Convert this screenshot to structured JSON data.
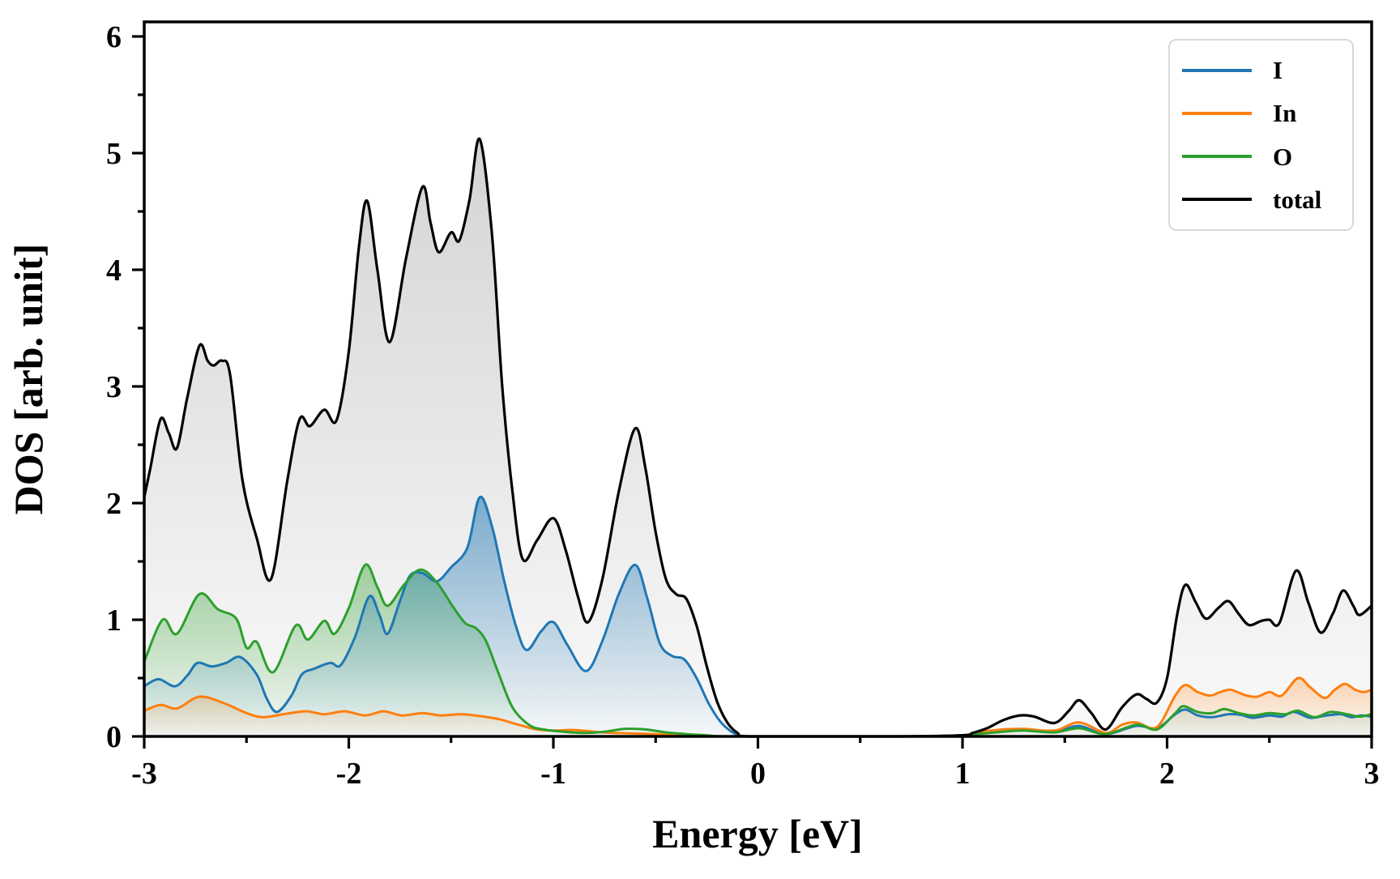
{
  "figure": {
    "background": "#ffffff"
  },
  "chart_data": {
    "type": "area",
    "title": "",
    "xlabel": "Energy [eV]",
    "ylabel": "DOS [arb. unit]",
    "xlim": [
      -3,
      3
    ],
    "ylim": [
      0,
      6.13
    ],
    "grid": false,
    "xticks": {
      "major": [
        -3,
        -2,
        -1,
        0,
        1,
        2,
        3
      ],
      "labels": [
        "-3",
        "-2",
        "-1",
        "0",
        "1",
        "2",
        "3"
      ],
      "minor_step": 0.5
    },
    "yticks": {
      "major": [
        0,
        1,
        2,
        3,
        4,
        5,
        6
      ],
      "labels": [
        "0",
        "1",
        "2",
        "3",
        "4",
        "5",
        "6"
      ],
      "minor_step": 0.5
    },
    "legend": {
      "position": "upper right",
      "entries": [
        "I",
        "In",
        "O",
        "total"
      ]
    },
    "series": [
      {
        "name": "I",
        "color": "#1f77b4",
        "fill_top_alpha": 0.55,
        "points": [
          [
            -3,
            0.43
          ],
          [
            -2.93,
            0.49
          ],
          [
            -2.85,
            0.43
          ],
          [
            -2.79,
            0.52
          ],
          [
            -2.74,
            0.63
          ],
          [
            -2.67,
            0.6
          ],
          [
            -2.6,
            0.63
          ],
          [
            -2.53,
            0.68
          ],
          [
            -2.45,
            0.53
          ],
          [
            -2.4,
            0.32
          ],
          [
            -2.35,
            0.21
          ],
          [
            -2.28,
            0.35
          ],
          [
            -2.23,
            0.53
          ],
          [
            -2.17,
            0.58
          ],
          [
            -2.09,
            0.63
          ],
          [
            -2.04,
            0.61
          ],
          [
            -1.97,
            0.85
          ],
          [
            -1.9,
            1.2
          ],
          [
            -1.85,
            1.04
          ],
          [
            -1.81,
            0.88
          ],
          [
            -1.75,
            1.16
          ],
          [
            -1.7,
            1.38
          ],
          [
            -1.64,
            1.4
          ],
          [
            -1.57,
            1.33
          ],
          [
            -1.5,
            1.45
          ],
          [
            -1.42,
            1.62
          ],
          [
            -1.36,
            2.05
          ],
          [
            -1.3,
            1.8
          ],
          [
            -1.24,
            1.33
          ],
          [
            -1.18,
            0.93
          ],
          [
            -1.13,
            0.74
          ],
          [
            -1.06,
            0.9
          ],
          [
            -1,
            0.98
          ],
          [
            -0.93,
            0.78
          ],
          [
            -0.84,
            0.56
          ],
          [
            -0.76,
            0.82
          ],
          [
            -0.68,
            1.22
          ],
          [
            -0.6,
            1.47
          ],
          [
            -0.54,
            1.18
          ],
          [
            -0.48,
            0.8
          ],
          [
            -0.42,
            0.69
          ],
          [
            -0.36,
            0.66
          ],
          [
            -0.3,
            0.5
          ],
          [
            -0.24,
            0.28
          ],
          [
            -0.18,
            0.12
          ],
          [
            -0.11,
            0.02
          ],
          [
            -0.05,
            0
          ],
          [
            0.3,
            0
          ],
          [
            0.7,
            0
          ],
          [
            1,
            0.01
          ],
          [
            1.1,
            0.03
          ],
          [
            1.2,
            0.05
          ],
          [
            1.3,
            0.055
          ],
          [
            1.45,
            0.04
          ],
          [
            1.57,
            0.09
          ],
          [
            1.7,
            0.02
          ],
          [
            1.85,
            0.09
          ],
          [
            1.95,
            0.07
          ],
          [
            2.04,
            0.19
          ],
          [
            2.09,
            0.23
          ],
          [
            2.15,
            0.18
          ],
          [
            2.22,
            0.165
          ],
          [
            2.3,
            0.19
          ],
          [
            2.36,
            0.185
          ],
          [
            2.42,
            0.16
          ],
          [
            2.5,
            0.18
          ],
          [
            2.56,
            0.17
          ],
          [
            2.62,
            0.21
          ],
          [
            2.7,
            0.16
          ],
          [
            2.78,
            0.18
          ],
          [
            2.85,
            0.19
          ],
          [
            2.9,
            0.165
          ],
          [
            2.95,
            0.18
          ],
          [
            3,
            0.17
          ]
        ]
      },
      {
        "name": "In",
        "color": "#ff7f0e",
        "fill_top_alpha": 0.3,
        "points": [
          [
            -3,
            0.22
          ],
          [
            -2.92,
            0.27
          ],
          [
            -2.84,
            0.24
          ],
          [
            -2.73,
            0.34
          ],
          [
            -2.61,
            0.285
          ],
          [
            -2.5,
            0.2
          ],
          [
            -2.42,
            0.165
          ],
          [
            -2.32,
            0.19
          ],
          [
            -2.21,
            0.215
          ],
          [
            -2.12,
            0.19
          ],
          [
            -2.02,
            0.215
          ],
          [
            -1.92,
            0.18
          ],
          [
            -1.83,
            0.215
          ],
          [
            -1.74,
            0.18
          ],
          [
            -1.64,
            0.2
          ],
          [
            -1.55,
            0.18
          ],
          [
            -1.45,
            0.19
          ],
          [
            -1.34,
            0.17
          ],
          [
            -1.26,
            0.145
          ],
          [
            -1.17,
            0.1
          ],
          [
            -1.08,
            0.06
          ],
          [
            -1,
            0.05
          ],
          [
            -0.9,
            0.055
          ],
          [
            -0.8,
            0.04
          ],
          [
            -0.7,
            0.03
          ],
          [
            -0.6,
            0.025
          ],
          [
            -0.5,
            0.02
          ],
          [
            -0.4,
            0.012
          ],
          [
            -0.3,
            0.005
          ],
          [
            -0.2,
            0
          ],
          [
            0.3,
            0
          ],
          [
            0.7,
            0
          ],
          [
            1,
            0.01
          ],
          [
            1.1,
            0.04
          ],
          [
            1.2,
            0.06
          ],
          [
            1.3,
            0.065
          ],
          [
            1.45,
            0.05
          ],
          [
            1.57,
            0.12
          ],
          [
            1.7,
            0.03
          ],
          [
            1.78,
            0.1
          ],
          [
            1.85,
            0.12
          ],
          [
            1.95,
            0.08
          ],
          [
            2.04,
            0.35
          ],
          [
            2.09,
            0.44
          ],
          [
            2.15,
            0.38
          ],
          [
            2.21,
            0.35
          ],
          [
            2.26,
            0.38
          ],
          [
            2.31,
            0.4
          ],
          [
            2.38,
            0.355
          ],
          [
            2.44,
            0.34
          ],
          [
            2.5,
            0.38
          ],
          [
            2.56,
            0.35
          ],
          [
            2.64,
            0.5
          ],
          [
            2.7,
            0.42
          ],
          [
            2.77,
            0.33
          ],
          [
            2.82,
            0.4
          ],
          [
            2.87,
            0.45
          ],
          [
            2.92,
            0.4
          ],
          [
            2.96,
            0.38
          ],
          [
            3,
            0.4
          ]
        ]
      },
      {
        "name": "O",
        "color": "#2ca02c",
        "fill_top_alpha": 0.42,
        "points": [
          [
            -3,
            0.64
          ],
          [
            -2.91,
            1
          ],
          [
            -2.84,
            0.88
          ],
          [
            -2.73,
            1.22
          ],
          [
            -2.64,
            1.09
          ],
          [
            -2.55,
            1.01
          ],
          [
            -2.5,
            0.76
          ],
          [
            -2.45,
            0.81
          ],
          [
            -2.37,
            0.55
          ],
          [
            -2.26,
            0.95
          ],
          [
            -2.2,
            0.83
          ],
          [
            -2.12,
            0.99
          ],
          [
            -2.07,
            0.88
          ],
          [
            -2,
            1.1
          ],
          [
            -1.92,
            1.47
          ],
          [
            -1.86,
            1.28
          ],
          [
            -1.81,
            1.12
          ],
          [
            -1.73,
            1.3
          ],
          [
            -1.65,
            1.43
          ],
          [
            -1.57,
            1.32
          ],
          [
            -1.49,
            1.11
          ],
          [
            -1.43,
            0.97
          ],
          [
            -1.38,
            0.93
          ],
          [
            -1.33,
            0.82
          ],
          [
            -1.27,
            0.55
          ],
          [
            -1.2,
            0.25
          ],
          [
            -1.12,
            0.1
          ],
          [
            -1.05,
            0.06
          ],
          [
            -0.95,
            0.04
          ],
          [
            -0.85,
            0.03
          ],
          [
            -0.75,
            0.04
          ],
          [
            -0.65,
            0.065
          ],
          [
            -0.55,
            0.06
          ],
          [
            -0.45,
            0.035
          ],
          [
            -0.35,
            0.02
          ],
          [
            -0.25,
            0.01
          ],
          [
            -0.15,
            0
          ],
          [
            0.3,
            0
          ],
          [
            0.7,
            0
          ],
          [
            1,
            0.005
          ],
          [
            1.1,
            0.025
          ],
          [
            1.2,
            0.04
          ],
          [
            1.3,
            0.05
          ],
          [
            1.45,
            0.035
          ],
          [
            1.57,
            0.07
          ],
          [
            1.7,
            0.02
          ],
          [
            1.85,
            0.1
          ],
          [
            1.95,
            0.06
          ],
          [
            2.04,
            0.2
          ],
          [
            2.08,
            0.26
          ],
          [
            2.15,
            0.21
          ],
          [
            2.22,
            0.2
          ],
          [
            2.28,
            0.235
          ],
          [
            2.35,
            0.2
          ],
          [
            2.42,
            0.18
          ],
          [
            2.5,
            0.2
          ],
          [
            2.58,
            0.19
          ],
          [
            2.64,
            0.22
          ],
          [
            2.72,
            0.165
          ],
          [
            2.8,
            0.21
          ],
          [
            2.88,
            0.19
          ],
          [
            2.94,
            0.17
          ],
          [
            3,
            0.19
          ]
        ]
      },
      {
        "name": "total",
        "color": "#000000",
        "fill_top_alpha": 0.17,
        "points": [
          [
            -3,
            2.05
          ],
          [
            -2.97,
            2.3
          ],
          [
            -2.92,
            2.72
          ],
          [
            -2.88,
            2.6
          ],
          [
            -2.84,
            2.47
          ],
          [
            -2.79,
            2.9
          ],
          [
            -2.73,
            3.35
          ],
          [
            -2.69,
            3.22
          ],
          [
            -2.66,
            3.18
          ],
          [
            -2.62,
            3.22
          ],
          [
            -2.58,
            3.1
          ],
          [
            -2.52,
            2.2
          ],
          [
            -2.45,
            1.7
          ],
          [
            -2.38,
            1.35
          ],
          [
            -2.3,
            2.2
          ],
          [
            -2.24,
            2.72
          ],
          [
            -2.19,
            2.66
          ],
          [
            -2.12,
            2.8
          ],
          [
            -2.06,
            2.71
          ],
          [
            -2,
            3.3
          ],
          [
            -1.95,
            4.2
          ],
          [
            -1.91,
            4.59
          ],
          [
            -1.86,
            4
          ],
          [
            -1.8,
            3.38
          ],
          [
            -1.72,
            4.1
          ],
          [
            -1.64,
            4.71
          ],
          [
            -1.6,
            4.4
          ],
          [
            -1.56,
            4.15
          ],
          [
            -1.5,
            4.32
          ],
          [
            -1.46,
            4.25
          ],
          [
            -1.41,
            4.6
          ],
          [
            -1.36,
            5.12
          ],
          [
            -1.3,
            4.3
          ],
          [
            -1.25,
            3
          ],
          [
            -1.2,
            2.1
          ],
          [
            -1.15,
            1.52
          ],
          [
            -1.08,
            1.68
          ],
          [
            -1,
            1.87
          ],
          [
            -0.94,
            1.6
          ],
          [
            -0.88,
            1.2
          ],
          [
            -0.83,
            0.98
          ],
          [
            -0.76,
            1.35
          ],
          [
            -0.68,
            2.1
          ],
          [
            -0.6,
            2.64
          ],
          [
            -0.55,
            2.3
          ],
          [
            -0.5,
            1.75
          ],
          [
            -0.45,
            1.35
          ],
          [
            -0.4,
            1.22
          ],
          [
            -0.35,
            1.18
          ],
          [
            -0.3,
            0.95
          ],
          [
            -0.25,
            0.6
          ],
          [
            -0.2,
            0.3
          ],
          [
            -0.15,
            0.12
          ],
          [
            -0.1,
            0.03
          ],
          [
            -0.05,
            0
          ],
          [
            0.3,
            0
          ],
          [
            0.7,
            0
          ],
          [
            1,
            0.01
          ],
          [
            1.05,
            0.03
          ],
          [
            1.12,
            0.07
          ],
          [
            1.2,
            0.14
          ],
          [
            1.28,
            0.18
          ],
          [
            1.35,
            0.17
          ],
          [
            1.45,
            0.115
          ],
          [
            1.52,
            0.22
          ],
          [
            1.57,
            0.31
          ],
          [
            1.63,
            0.2
          ],
          [
            1.7,
            0.06
          ],
          [
            1.78,
            0.25
          ],
          [
            1.85,
            0.36
          ],
          [
            1.9,
            0.32
          ],
          [
            1.95,
            0.29
          ],
          [
            2,
            0.5
          ],
          [
            2.05,
            1.05
          ],
          [
            2.09,
            1.3
          ],
          [
            2.14,
            1.15
          ],
          [
            2.19,
            1.01
          ],
          [
            2.25,
            1.1
          ],
          [
            2.3,
            1.16
          ],
          [
            2.35,
            1.05
          ],
          [
            2.4,
            0.955
          ],
          [
            2.46,
            0.99
          ],
          [
            2.5,
            1
          ],
          [
            2.55,
            0.975
          ],
          [
            2.63,
            1.42
          ],
          [
            2.69,
            1.15
          ],
          [
            2.75,
            0.89
          ],
          [
            2.81,
            1.05
          ],
          [
            2.86,
            1.25
          ],
          [
            2.91,
            1.12
          ],
          [
            2.94,
            1.04
          ],
          [
            3,
            1.12
          ]
        ]
      }
    ]
  }
}
